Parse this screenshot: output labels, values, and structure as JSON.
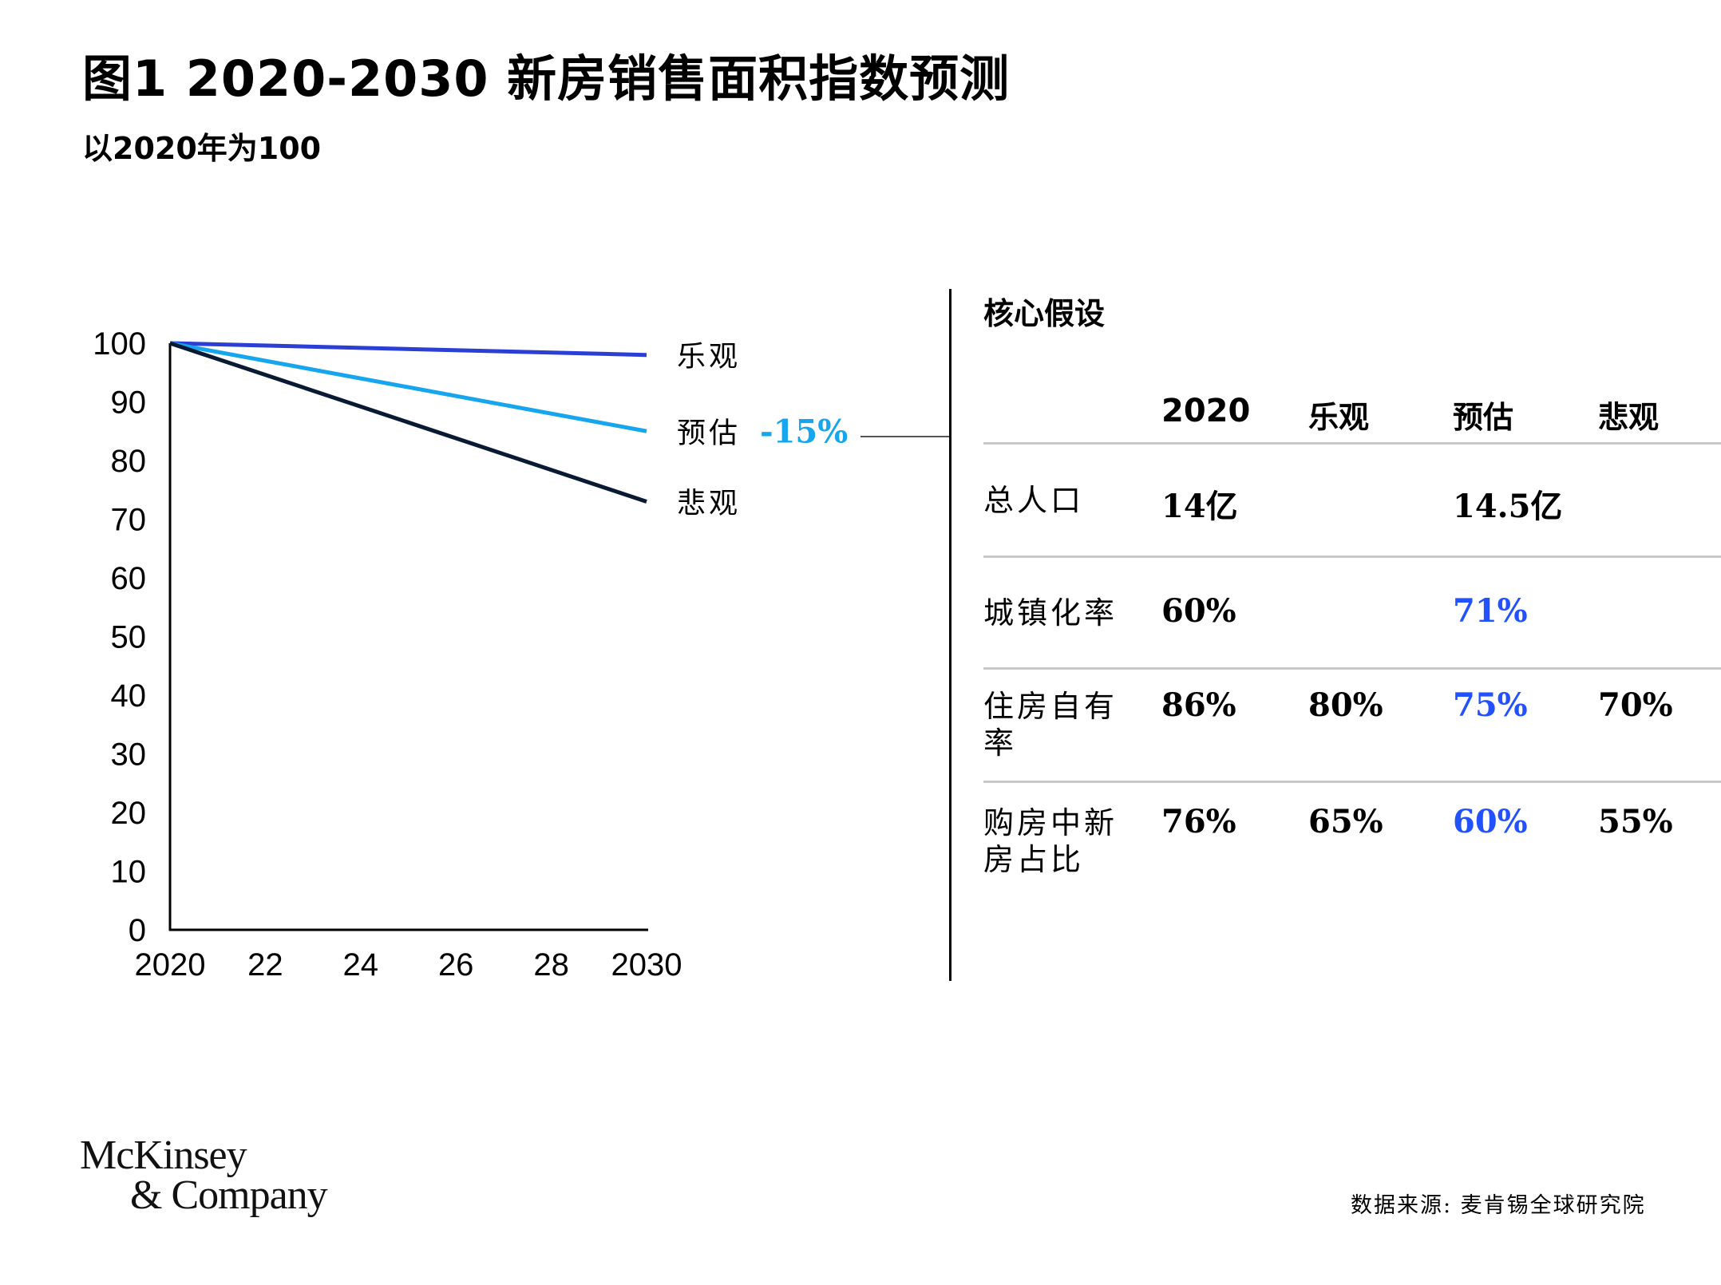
{
  "title": "图1 2020-2030 新房销售面积指数预测",
  "subtitle": "以2020年为100",
  "chart_data": {
    "type": "line",
    "x": [
      2020,
      2030
    ],
    "x_tick_labels": [
      "2020",
      "22",
      "24",
      "26",
      "28",
      "2030"
    ],
    "x_ticks": [
      2020,
      2022,
      2024,
      2026,
      2028,
      2030
    ],
    "y_ticks": [
      0,
      10,
      20,
      30,
      40,
      50,
      60,
      70,
      80,
      90,
      100
    ],
    "ylim": [
      0,
      100
    ],
    "xlim": [
      2020,
      2030
    ],
    "series": [
      {
        "name": "乐观",
        "values": [
          100,
          98
        ],
        "color": "#2b3fd4"
      },
      {
        "name": "预估",
        "values": [
          100,
          85
        ],
        "color": "#17a6ee"
      },
      {
        "name": "悲观",
        "values": [
          100,
          73
        ],
        "color": "#0b1a33"
      }
    ],
    "annotation": {
      "text": "-15%",
      "series": "预估",
      "color": "#17a6ee"
    }
  },
  "panel": {
    "title": "核心假设",
    "headers": [
      "2020",
      "乐观",
      "预估",
      "悲观"
    ],
    "rows": [
      {
        "label": "总人口",
        "cells": [
          "14亿",
          "",
          "14.5亿",
          ""
        ]
      },
      {
        "label": "城镇化率",
        "cells": [
          "60%",
          "",
          "71%",
          ""
        ]
      },
      {
        "label": "住房自有率",
        "cells": [
          "86%",
          "80%",
          "75%",
          "70%"
        ]
      },
      {
        "label": "购房中新房占比",
        "cells": [
          "76%",
          "65%",
          "60%",
          "55%"
        ]
      }
    ]
  },
  "logo": {
    "line1": "McKinsey",
    "line2": "& Company"
  },
  "source": "数据来源: 麦肯锡全球研究院"
}
